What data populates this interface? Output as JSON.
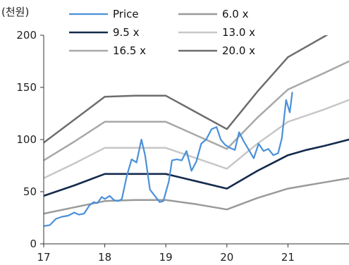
{
  "chart_data": {
    "type": "line",
    "unit_label": "(천원)",
    "xlabel": "",
    "ylabel": "",
    "ylim": [
      0,
      200
    ],
    "y_ticks": [
      0,
      50,
      100,
      150,
      200
    ],
    "xlim": [
      17,
      22
    ],
    "x_ticks": [
      17,
      18,
      19,
      20,
      21
    ],
    "x_tick_labels": [
      "17",
      "18",
      "19",
      "20",
      "21"
    ],
    "grid": false,
    "legend_position": "top",
    "series": [
      {
        "name": "Price",
        "color": "#4a90d9",
        "width": 2.2,
        "points": [
          [
            17.0,
            17
          ],
          [
            17.1,
            18
          ],
          [
            17.2,
            24
          ],
          [
            17.3,
            26
          ],
          [
            17.4,
            27
          ],
          [
            17.5,
            30
          ],
          [
            17.58,
            28
          ],
          [
            17.66,
            29
          ],
          [
            17.75,
            37
          ],
          [
            17.82,
            40
          ],
          [
            17.88,
            39
          ],
          [
            17.95,
            45
          ],
          [
            18.0,
            43
          ],
          [
            18.08,
            46
          ],
          [
            18.15,
            42
          ],
          [
            18.22,
            41
          ],
          [
            18.28,
            43
          ],
          [
            18.36,
            65
          ],
          [
            18.44,
            81
          ],
          [
            18.52,
            78
          ],
          [
            18.6,
            100
          ],
          [
            18.66,
            85
          ],
          [
            18.74,
            52
          ],
          [
            18.82,
            46
          ],
          [
            18.9,
            40
          ],
          [
            18.96,
            41
          ],
          [
            19.05,
            60
          ],
          [
            19.1,
            80
          ],
          [
            19.18,
            81
          ],
          [
            19.26,
            80
          ],
          [
            19.34,
            89
          ],
          [
            19.42,
            70
          ],
          [
            19.5,
            79
          ],
          [
            19.58,
            96
          ],
          [
            19.66,
            100
          ],
          [
            19.75,
            110
          ],
          [
            19.83,
            112
          ],
          [
            19.9,
            100
          ],
          [
            19.97,
            95
          ],
          [
            20.05,
            92
          ],
          [
            20.13,
            90
          ],
          [
            20.2,
            107
          ],
          [
            20.28,
            98
          ],
          [
            20.36,
            90
          ],
          [
            20.44,
            82
          ],
          [
            20.52,
            96
          ],
          [
            20.6,
            89
          ],
          [
            20.68,
            91
          ],
          [
            20.76,
            85
          ],
          [
            20.84,
            87
          ],
          [
            20.9,
            101
          ],
          [
            20.97,
            138
          ],
          [
            21.03,
            126
          ],
          [
            21.07,
            145
          ]
        ]
      },
      {
        "name": "6.0 x",
        "color": "#9a9a9a",
        "width": 2.5,
        "points": [
          [
            17.0,
            29
          ],
          [
            17.5,
            35
          ],
          [
            18.0,
            41
          ],
          [
            18.5,
            42
          ],
          [
            19.0,
            42
          ],
          [
            19.5,
            38
          ],
          [
            20.0,
            33
          ],
          [
            20.5,
            44
          ],
          [
            21.0,
            53
          ],
          [
            21.3,
            56
          ],
          [
            21.6,
            59
          ],
          [
            22.0,
            63
          ]
        ]
      },
      {
        "name": "9.5 x",
        "color": "#142a4d",
        "width": 2.6,
        "points": [
          [
            17.0,
            46
          ],
          [
            17.5,
            56
          ],
          [
            18.0,
            67
          ],
          [
            18.5,
            67
          ],
          [
            19.0,
            67
          ],
          [
            19.5,
            60
          ],
          [
            20.0,
            53
          ],
          [
            20.5,
            70
          ],
          [
            21.0,
            85
          ],
          [
            21.3,
            90
          ],
          [
            21.6,
            94
          ],
          [
            22.0,
            100
          ]
        ]
      },
      {
        "name": "13.0 x",
        "color": "#c7c7c7",
        "width": 2.5,
        "points": [
          [
            17.0,
            63
          ],
          [
            17.5,
            77
          ],
          [
            18.0,
            92
          ],
          [
            18.5,
            92
          ],
          [
            19.0,
            92
          ],
          [
            19.5,
            82
          ],
          [
            20.0,
            72
          ],
          [
            20.5,
            96
          ],
          [
            21.0,
            117
          ],
          [
            21.3,
            123
          ],
          [
            21.6,
            129
          ],
          [
            22.0,
            138
          ]
        ]
      },
      {
        "name": "16.5 x",
        "color": "#a8a8a8",
        "width": 2.5,
        "points": [
          [
            17.0,
            80
          ],
          [
            17.5,
            98
          ],
          [
            18.0,
            117
          ],
          [
            18.5,
            117
          ],
          [
            19.0,
            117
          ],
          [
            19.5,
            104
          ],
          [
            20.0,
            91
          ],
          [
            20.5,
            121
          ],
          [
            21.0,
            148
          ],
          [
            21.3,
            156
          ],
          [
            21.6,
            164
          ],
          [
            22.0,
            175
          ]
        ]
      },
      {
        "name": "20.0 x",
        "color": "#6d6d6d",
        "width": 2.5,
        "points": [
          [
            17.0,
            97
          ],
          [
            17.5,
            119
          ],
          [
            18.0,
            141
          ],
          [
            18.5,
            142
          ],
          [
            19.0,
            142
          ],
          [
            19.5,
            126
          ],
          [
            20.0,
            110
          ],
          [
            20.5,
            146
          ],
          [
            21.0,
            179
          ],
          [
            21.3,
            189
          ],
          [
            21.6,
            199
          ],
          [
            22.0,
            212
          ]
        ]
      }
    ]
  }
}
